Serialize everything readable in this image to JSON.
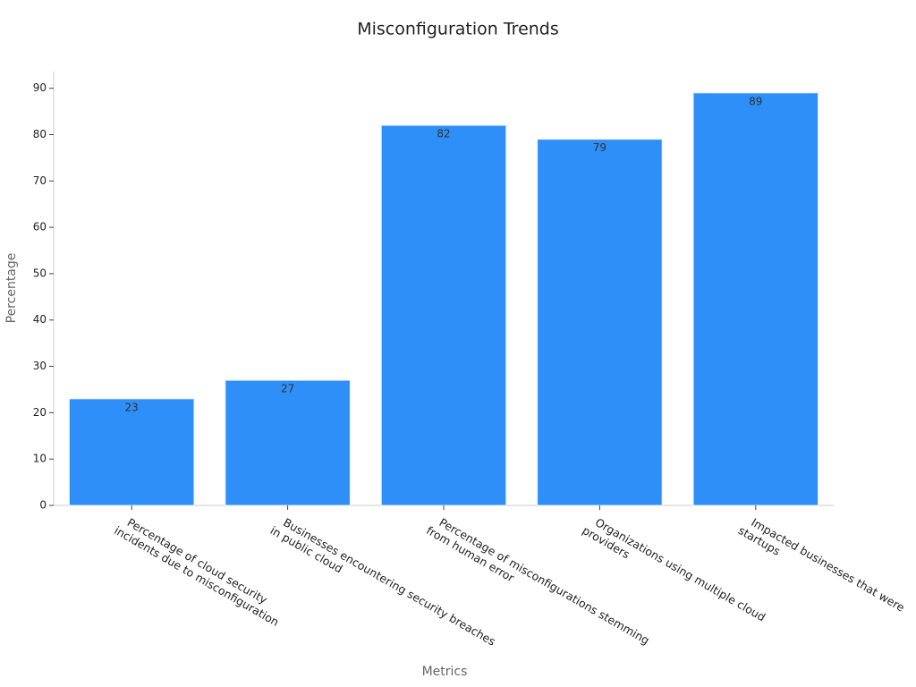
{
  "chart_data": {
    "type": "bar",
    "title": "Misconfiguration Trends",
    "x_label": "Metrics",
    "y_label": "Percentage",
    "categories": [
      [
        "Percentage of cloud security",
        "incidents due to misconfiguration"
      ],
      [
        "Businesses encountering security breaches",
        "in public cloud"
      ],
      [
        "Percentage of misconfigurations stemming",
        "from human error"
      ],
      [
        "Organizations using multiple cloud",
        "providers"
      ],
      [
        "Impacted businesses that were",
        "startups"
      ]
    ],
    "values": [
      23,
      27,
      82,
      79,
      89
    ],
    "color": "#2e8ff8",
    "ylim": [
      0,
      93.6
    ],
    "yticks": [
      0,
      10,
      20,
      30,
      40,
      50,
      60,
      70,
      80,
      90
    ],
    "grid": false
  }
}
